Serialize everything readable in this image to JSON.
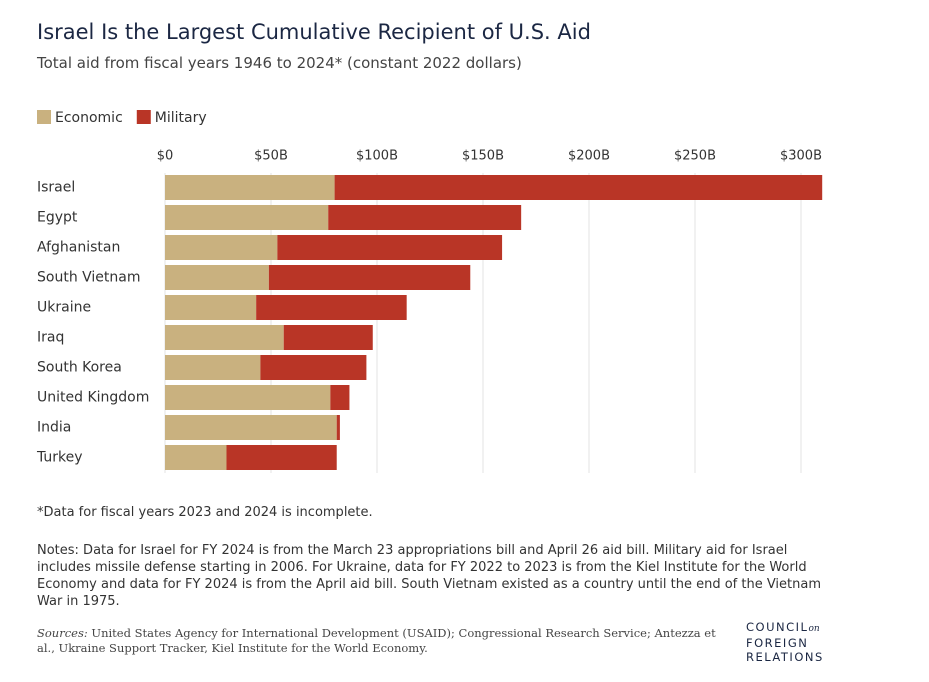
{
  "chart_data": {
    "type": "stacked-bar-horizontal",
    "title": "Israel Is the Largest Cumulative Recipient of U.S. Aid",
    "subtitle": "Total aid from fiscal years 1946 to 2024* (constant 2022 dollars)",
    "categories": [
      "Israel",
      "Egypt",
      "Afghanistan",
      "South Vietnam",
      "Ukraine",
      "Iraq",
      "South Korea",
      "United Kingdom",
      "India",
      "Turkey"
    ],
    "series": [
      {
        "name": "Economic",
        "color": "#c9b17f",
        "values": [
          80,
          77,
          53,
          49,
          43,
          56,
          45,
          78,
          81,
          29
        ]
      },
      {
        "name": "Military",
        "color": "#b93526",
        "values": [
          230,
          91,
          106,
          95,
          71,
          42,
          50,
          9,
          1.5,
          52
        ]
      }
    ],
    "xlim": [
      0,
      320
    ],
    "xticks": [
      {
        "value": 0,
        "label": "$0"
      },
      {
        "value": 50,
        "label": "$50B"
      },
      {
        "value": 100,
        "label": "$100B"
      },
      {
        "value": 150,
        "label": "$150B"
      },
      {
        "value": 200,
        "label": "$200B"
      },
      {
        "value": 250,
        "label": "$250B"
      },
      {
        "value": 300,
        "label": "$300B"
      }
    ],
    "grid": true,
    "footnote": "*Data for fiscal years 2023 and 2024 is incomplete.",
    "notes": "Notes: Data for Israel for FY 2024 is from the March 23 appropriations bill and April 26 aid bill. Military aid for Israel includes missile defense starting in 2006. For Ukraine, data for FY 2022 to 2023 is from the Kiel Institute for the World Economy and data for FY 2024 is from the April aid bill. South Vietnam existed as a country until the end of the Vietnam War in 1975.",
    "sources_label": "Sources:",
    "sources": "United States Agency for International Development (USAID); Congressional Research Service; Antezza et al., Ukraine Support Tracker, Kiel Institute for the World Economy.",
    "logo": [
      "COUNCIL",
      "on",
      "FOREIGN",
      "RELATIONS"
    ]
  }
}
